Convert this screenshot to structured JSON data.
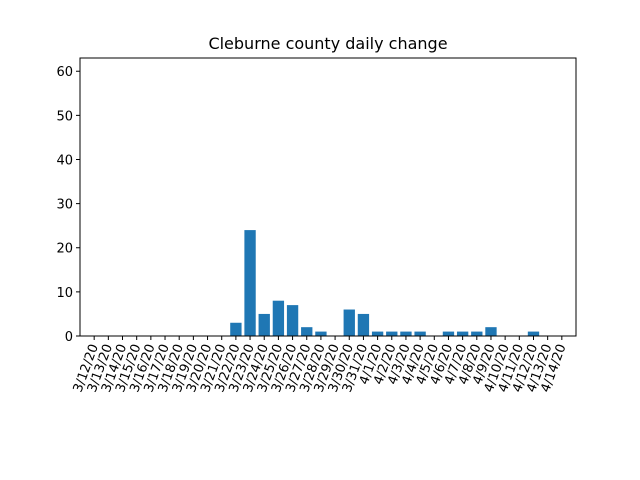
{
  "chart_data": {
    "type": "bar",
    "title": "Cleburne county daily change",
    "xlabel": "",
    "ylabel": "",
    "ylim": [
      0,
      63
    ],
    "yticks": [
      0,
      10,
      20,
      30,
      40,
      50,
      60
    ],
    "grid": false,
    "color": "#1f77b4",
    "categories": [
      "3/12/20",
      "3/13/20",
      "3/14/20",
      "3/15/20",
      "3/16/20",
      "3/17/20",
      "3/18/20",
      "3/19/20",
      "3/20/20",
      "3/21/20",
      "3/22/20",
      "3/23/20",
      "3/24/20",
      "3/25/20",
      "3/26/20",
      "3/27/20",
      "3/28/20",
      "3/29/20",
      "3/30/20",
      "3/31/20",
      "4/1/20",
      "4/2/20",
      "4/3/20",
      "4/4/20",
      "4/5/20",
      "4/6/20",
      "4/7/20",
      "4/8/20",
      "4/9/20",
      "4/10/20",
      "4/11/20",
      "4/12/20",
      "4/13/20",
      "4/14/20"
    ],
    "values": [
      0,
      0,
      0,
      0,
      0,
      0,
      0,
      0,
      0,
      0,
      3,
      24,
      5,
      8,
      7,
      2,
      1,
      0,
      6,
      5,
      1,
      1,
      1,
      1,
      0,
      1,
      1,
      1,
      2,
      0,
      0,
      1,
      0,
      0
    ]
  }
}
